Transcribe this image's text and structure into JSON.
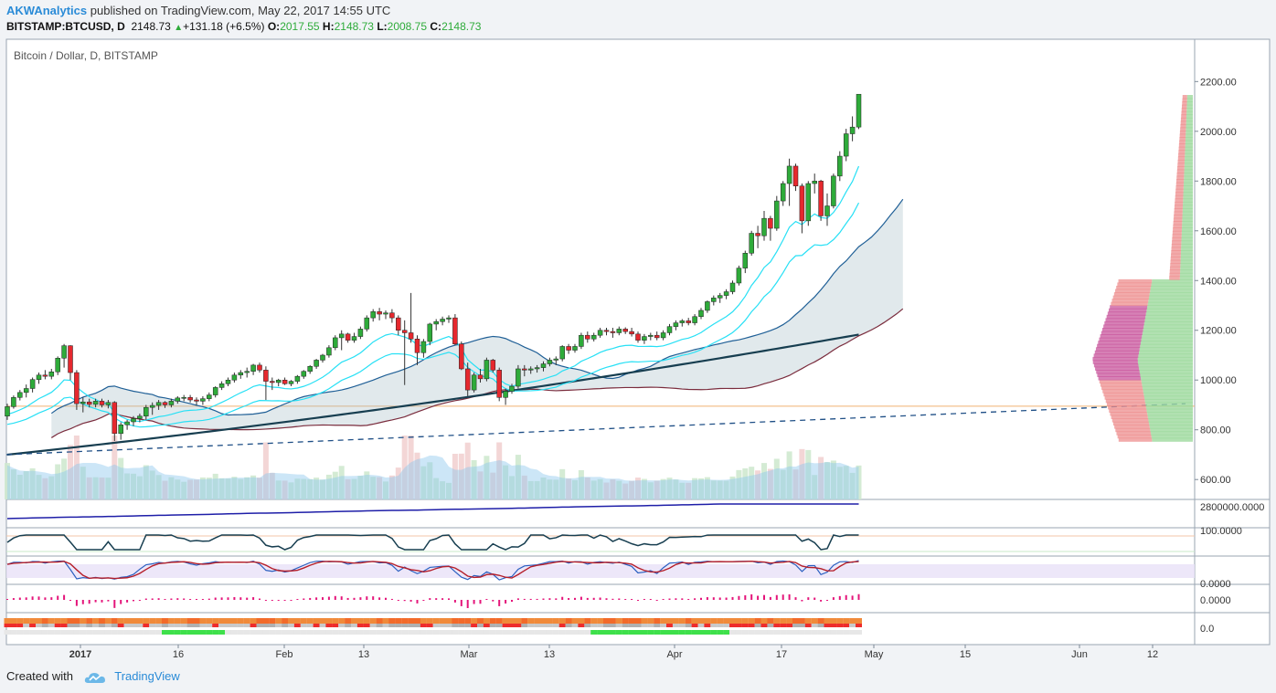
{
  "header": {
    "author": "AKWAnalytics",
    "published_text": " published on TradingView.com, May 22, 2017 14:55 UTC"
  },
  "quote": {
    "symbol": "BITSTAMP:BTCUSD, D",
    "last": "2148.73",
    "change": "+131.18 (+6.5%)",
    "o_label": "O:",
    "o_value": "2017.55",
    "h_label": "H:",
    "h_value": "2148.73",
    "l_label": "L:",
    "l_value": "2008.75",
    "c_label": "C:",
    "c_value": "2148.73"
  },
  "footer": {
    "created_with": "Created with",
    "brand": "TradingView"
  },
  "colors": {
    "up": "#2eab3a",
    "down": "#e6282e",
    "ema": "#27e0f5",
    "cloud_upper": "#1f5f96",
    "cloud_lower": "#7a2c3d",
    "ma_long": "#173e50",
    "accent_link": "#2a8bd7"
  },
  "chart_data": {
    "type": "candlestick",
    "title": "Bitcoin / Dollar, D, BITSTAMP",
    "xlabel": "",
    "ylabel": "",
    "ylim": [
      520,
      2370
    ],
    "yticks": [
      "2200.00",
      "2000.00",
      "1800.00",
      "1600.00",
      "1400.00",
      "1200.00",
      "1000.00",
      "800.00",
      "600.00"
    ],
    "xticks": [
      "2017",
      "16",
      "Feb",
      "13",
      "Mar",
      "13",
      "Apr",
      "17",
      "May",
      "15",
      "Jun",
      "12"
    ],
    "series_start": "2016-12-24",
    "candles": [
      [
        855,
        905,
        840,
        893
      ],
      [
        893,
        938,
        885,
        930
      ],
      [
        930,
        960,
        918,
        950
      ],
      [
        950,
        982,
        930,
        966
      ],
      [
        966,
        1010,
        950,
        1002
      ],
      [
        1002,
        1030,
        985,
        1020
      ],
      [
        1020,
        1040,
        1003,
        1015
      ],
      [
        1015,
        1045,
        1003,
        1033
      ],
      [
        1033,
        1095,
        1020,
        1088
      ],
      [
        1088,
        1145,
        1050,
        1138
      ],
      [
        1138,
        1140,
        1000,
        1030
      ],
      [
        1030,
        1040,
        880,
        905
      ],
      [
        905,
        930,
        870,
        912
      ],
      [
        912,
        925,
        890,
        902
      ],
      [
        902,
        925,
        890,
        915
      ],
      [
        915,
        925,
        890,
        900
      ],
      [
        900,
        920,
        886,
        910
      ],
      [
        910,
        915,
        755,
        785
      ],
      [
        785,
        830,
        760,
        820
      ],
      [
        820,
        840,
        800,
        832
      ],
      [
        832,
        855,
        815,
        845
      ],
      [
        845,
        865,
        830,
        855
      ],
      [
        855,
        900,
        840,
        890
      ],
      [
        890,
        910,
        860,
        898
      ],
      [
        898,
        920,
        880,
        910
      ],
      [
        910,
        915,
        888,
        900
      ],
      [
        900,
        925,
        890,
        915
      ],
      [
        915,
        935,
        905,
        928
      ],
      [
        928,
        940,
        915,
        930
      ],
      [
        930,
        940,
        910,
        920
      ],
      [
        920,
        930,
        900,
        915
      ],
      [
        915,
        935,
        900,
        925
      ],
      [
        925,
        950,
        915,
        940
      ],
      [
        940,
        975,
        930,
        970
      ],
      [
        970,
        995,
        960,
        985
      ],
      [
        985,
        1010,
        975,
        1000
      ],
      [
        1000,
        1030,
        990,
        1020
      ],
      [
        1020,
        1040,
        1005,
        1030
      ],
      [
        1030,
        1050,
        1010,
        1035
      ],
      [
        1035,
        1065,
        1020,
        1060
      ],
      [
        1060,
        1070,
        1030,
        1040
      ],
      [
        1040,
        1055,
        920,
        995
      ],
      [
        995,
        1010,
        960,
        990
      ],
      [
        990,
        1005,
        975,
        1000
      ],
      [
        1000,
        1010,
        980,
        985
      ],
      [
        985,
        1000,
        975,
        995
      ],
      [
        995,
        1020,
        985,
        1015
      ],
      [
        1015,
        1040,
        1005,
        1035
      ],
      [
        1035,
        1060,
        1025,
        1055
      ],
      [
        1055,
        1085,
        1045,
        1080
      ],
      [
        1080,
        1105,
        1070,
        1100
      ],
      [
        1100,
        1140,
        1090,
        1130
      ],
      [
        1130,
        1180,
        1120,
        1170
      ],
      [
        1170,
        1200,
        1120,
        1185
      ],
      [
        1185,
        1190,
        1150,
        1160
      ],
      [
        1160,
        1190,
        1150,
        1175
      ],
      [
        1175,
        1215,
        1165,
        1205
      ],
      [
        1205,
        1260,
        1195,
        1250
      ],
      [
        1250,
        1285,
        1235,
        1275
      ],
      [
        1275,
        1290,
        1240,
        1265
      ],
      [
        1265,
        1280,
        1245,
        1270
      ],
      [
        1270,
        1285,
        1230,
        1250
      ],
      [
        1250,
        1260,
        1180,
        1200
      ],
      [
        1200,
        1240,
        980,
        1190
      ],
      [
        1190,
        1350,
        1150,
        1165
      ],
      [
        1165,
        1180,
        1060,
        1110
      ],
      [
        1110,
        1165,
        1090,
        1155
      ],
      [
        1155,
        1230,
        1140,
        1225
      ],
      [
        1225,
        1245,
        1200,
        1235
      ],
      [
        1235,
        1255,
        1220,
        1245
      ],
      [
        1245,
        1260,
        1230,
        1250
      ],
      [
        1250,
        1265,
        1140,
        1145
      ],
      [
        1145,
        1155,
        1040,
        1045
      ],
      [
        1045,
        1070,
        935,
        960
      ],
      [
        960,
        1030,
        950,
        1020
      ],
      [
        1020,
        1045,
        990,
        1005
      ],
      [
        1005,
        1090,
        995,
        1080
      ],
      [
        1080,
        1085,
        1030,
        1040
      ],
      [
        1040,
        1050,
        915,
        930
      ],
      [
        930,
        965,
        900,
        955
      ],
      [
        955,
        985,
        945,
        975
      ],
      [
        975,
        1060,
        965,
        1045
      ],
      [
        1045,
        1060,
        1015,
        1040
      ],
      [
        1040,
        1055,
        1025,
        1045
      ],
      [
        1045,
        1060,
        1030,
        1050
      ],
      [
        1050,
        1075,
        1035,
        1065
      ],
      [
        1065,
        1090,
        1055,
        1080
      ],
      [
        1080,
        1095,
        1060,
        1085
      ],
      [
        1085,
        1140,
        1075,
        1135
      ],
      [
        1135,
        1145,
        1105,
        1120
      ],
      [
        1120,
        1145,
        1110,
        1135
      ],
      [
        1135,
        1190,
        1125,
        1180
      ],
      [
        1180,
        1195,
        1150,
        1165
      ],
      [
        1165,
        1190,
        1155,
        1180
      ],
      [
        1180,
        1210,
        1170,
        1200
      ],
      [
        1200,
        1210,
        1180,
        1195
      ],
      [
        1195,
        1210,
        1170,
        1190
      ],
      [
        1190,
        1215,
        1180,
        1205
      ],
      [
        1205,
        1212,
        1185,
        1195
      ],
      [
        1195,
        1210,
        1175,
        1185
      ],
      [
        1185,
        1195,
        1150,
        1160
      ],
      [
        1160,
        1185,
        1145,
        1175
      ],
      [
        1175,
        1190,
        1160,
        1180
      ],
      [
        1180,
        1195,
        1160,
        1170
      ],
      [
        1170,
        1200,
        1160,
        1190
      ],
      [
        1190,
        1225,
        1180,
        1215
      ],
      [
        1215,
        1240,
        1200,
        1230
      ],
      [
        1230,
        1245,
        1215,
        1238
      ],
      [
        1238,
        1250,
        1220,
        1230
      ],
      [
        1230,
        1265,
        1220,
        1255
      ],
      [
        1255,
        1290,
        1245,
        1280
      ],
      [
        1280,
        1320,
        1270,
        1315
      ],
      [
        1315,
        1340,
        1300,
        1330
      ],
      [
        1330,
        1350,
        1310,
        1340
      ],
      [
        1340,
        1365,
        1325,
        1355
      ],
      [
        1355,
        1400,
        1345,
        1390
      ],
      [
        1390,
        1460,
        1380,
        1450
      ],
      [
        1450,
        1520,
        1430,
        1510
      ],
      [
        1510,
        1600,
        1500,
        1590
      ],
      [
        1590,
        1620,
        1530,
        1580
      ],
      [
        1580,
        1680,
        1560,
        1650
      ],
      [
        1650,
        1660,
        1560,
        1610
      ],
      [
        1610,
        1740,
        1600,
        1720
      ],
      [
        1720,
        1800,
        1700,
        1790
      ],
      [
        1790,
        1890,
        1700,
        1860
      ],
      [
        1860,
        1870,
        1760,
        1780
      ],
      [
        1780,
        1790,
        1590,
        1640
      ],
      [
        1640,
        1800,
        1620,
        1790
      ],
      [
        1790,
        1830,
        1750,
        1800
      ],
      [
        1800,
        1805,
        1640,
        1660
      ],
      [
        1660,
        1750,
        1620,
        1700
      ],
      [
        1700,
        1830,
        1690,
        1820
      ],
      [
        1820,
        1920,
        1800,
        1900
      ],
      [
        1900,
        2010,
        1880,
        1990
      ],
      [
        1990,
        2060,
        1960,
        2017
      ],
      [
        2017,
        2149,
        2009,
        2149
      ]
    ]
  },
  "panes": [
    {
      "label": "2800000.0000"
    },
    {
      "label": "100.0000"
    },
    {
      "label": "0.0000"
    },
    {
      "label": "0.0000"
    },
    {
      "label": "0.0"
    }
  ]
}
